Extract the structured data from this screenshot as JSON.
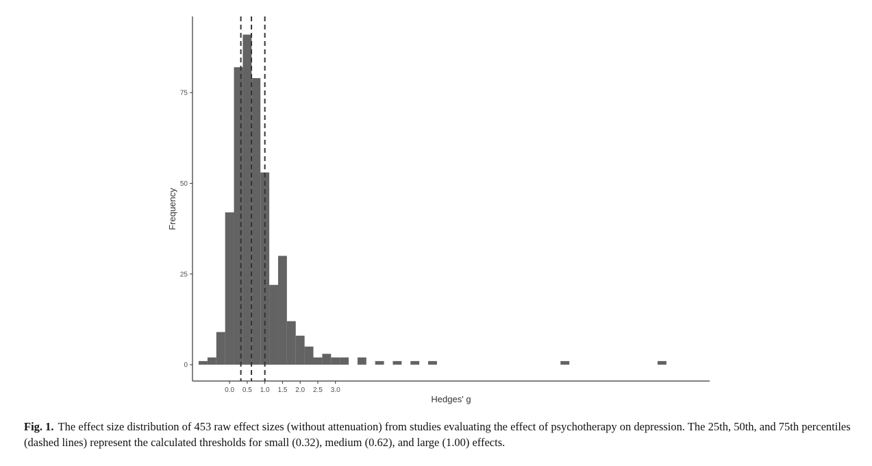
{
  "chart_data": {
    "type": "histogram",
    "xlabel": "Hedges' g",
    "ylabel": "Frequency",
    "x_ticks": [
      "0.0",
      "0.5",
      "1.0",
      "1.5",
      "2.0",
      "2.5",
      "3.0"
    ],
    "y_ticks": [
      "0",
      "25",
      "50",
      "75"
    ],
    "xlim": [
      -1.05,
      13.6
    ],
    "ylim": [
      -4.5,
      96
    ],
    "bin_width": 0.25,
    "bins": [
      {
        "x0": -0.875,
        "x1": -0.625,
        "count": 1
      },
      {
        "x0": -0.625,
        "x1": -0.375,
        "count": 2
      },
      {
        "x0": -0.375,
        "x1": -0.125,
        "count": 9
      },
      {
        "x0": -0.125,
        "x1": 0.125,
        "count": 42
      },
      {
        "x0": 0.125,
        "x1": 0.375,
        "count": 82
      },
      {
        "x0": 0.375,
        "x1": 0.625,
        "count": 91
      },
      {
        "x0": 0.625,
        "x1": 0.875,
        "count": 79
      },
      {
        "x0": 0.875,
        "x1": 1.125,
        "count": 53
      },
      {
        "x0": 1.125,
        "x1": 1.375,
        "count": 22
      },
      {
        "x0": 1.375,
        "x1": 1.625,
        "count": 30
      },
      {
        "x0": 1.625,
        "x1": 1.875,
        "count": 12
      },
      {
        "x0": 1.875,
        "x1": 2.125,
        "count": 8
      },
      {
        "x0": 2.125,
        "x1": 2.375,
        "count": 5
      },
      {
        "x0": 2.375,
        "x1": 2.625,
        "count": 2
      },
      {
        "x0": 2.625,
        "x1": 2.875,
        "count": 3
      },
      {
        "x0": 2.875,
        "x1": 3.125,
        "count": 2
      },
      {
        "x0": 3.125,
        "x1": 3.375,
        "count": 2
      },
      {
        "x0": 3.375,
        "x1": 3.625,
        "count": 0
      },
      {
        "x0": 3.625,
        "x1": 3.875,
        "count": 2
      },
      {
        "x0": 3.875,
        "x1": 4.125,
        "count": 0
      },
      {
        "x0": 4.125,
        "x1": 4.375,
        "count": 1
      },
      {
        "x0": 4.375,
        "x1": 4.625,
        "count": 0
      },
      {
        "x0": 4.625,
        "x1": 4.875,
        "count": 1
      },
      {
        "x0": 4.875,
        "x1": 5.125,
        "count": 0
      },
      {
        "x0": 5.125,
        "x1": 5.375,
        "count": 1
      },
      {
        "x0": 5.375,
        "x1": 5.625,
        "count": 0
      },
      {
        "x0": 5.625,
        "x1": 5.875,
        "count": 1
      },
      {
        "x0": 9.375,
        "x1": 9.625,
        "count": 1
      },
      {
        "x0": 12.125,
        "x1": 12.375,
        "count": 1
      }
    ],
    "reference_lines": [
      {
        "x": 0.32,
        "style": "dashed"
      },
      {
        "x": 0.62,
        "style": "dashed"
      },
      {
        "x": 1.0,
        "style": "dashed"
      }
    ],
    "colors": {
      "bar": "#636363",
      "reference_line": "#333333",
      "axis": "#333333"
    },
    "grid": false
  },
  "caption": {
    "label": "Fig. 1.",
    "text": "The effect size distribution of 453 raw effect sizes (without attenuation) from studies evaluating the effect of psychotherapy on depression. The 25th, 50th, and 75th percentiles (dashed lines) represent the calculated thresholds for small (0.32), medium (0.62), and large (1.00) effects."
  }
}
